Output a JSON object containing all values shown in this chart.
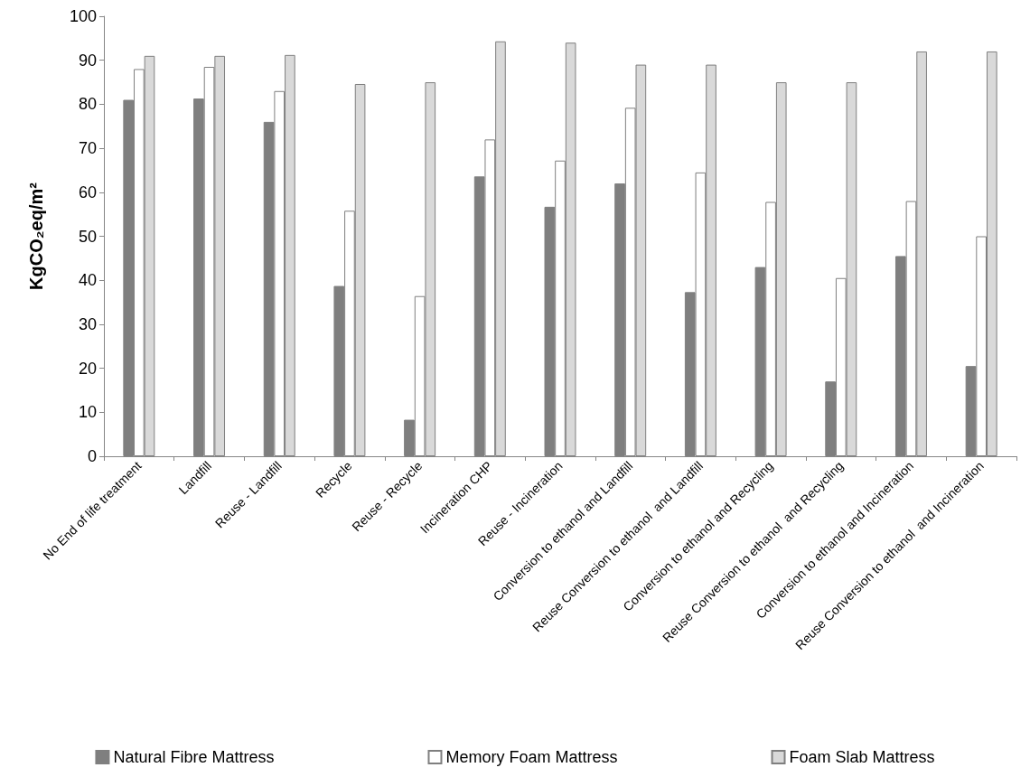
{
  "chart_data": {
    "type": "bar",
    "ylabel": "KgCO₂eq/m²",
    "categories": [
      "No End of life treatment",
      "Landfill",
      "Reuse - Landfill",
      "Recycle",
      "Reuse - Recycle",
      "Incineration CHP",
      "Reuse - Incineration",
      "Conversion to ethanol and Landfill",
      "Reuse Conversion to ethanol  and Landfill",
      "Conversion to ethanol and Recycling",
      "Reuse Conversion to ethanol  and Recycling",
      "Conversion to ethanol and Incineration",
      "Reuse Conversion to ethanol  and Incineration"
    ],
    "series": [
      {
        "name": "Natural Fibre Mattress",
        "color": "#7f7f7f",
        "values": [
          81,
          81.3,
          76,
          38.7,
          8.3,
          63.6,
          56.7,
          62,
          37.3,
          43,
          17,
          45.5,
          20.5
        ]
      },
      {
        "name": "Memory Foam Mattress",
        "color": "#ffffff",
        "values": [
          88,
          88.5,
          83,
          55.8,
          36.4,
          72,
          67.2,
          79.2,
          64.5,
          57.8,
          40.5,
          58,
          50
        ]
      },
      {
        "name": "Foam Slab Mattress",
        "color": "#d9d9d9",
        "values": [
          91,
          91,
          91.2,
          84.6,
          85,
          94.3,
          94,
          89,
          89,
          85,
          85,
          92,
          92
        ]
      }
    ],
    "ylim": [
      0,
      100
    ],
    "yticks": [
      0,
      10,
      20,
      30,
      40,
      50,
      60,
      70,
      80,
      90,
      100
    ],
    "grid": false,
    "legend": "bottom"
  }
}
